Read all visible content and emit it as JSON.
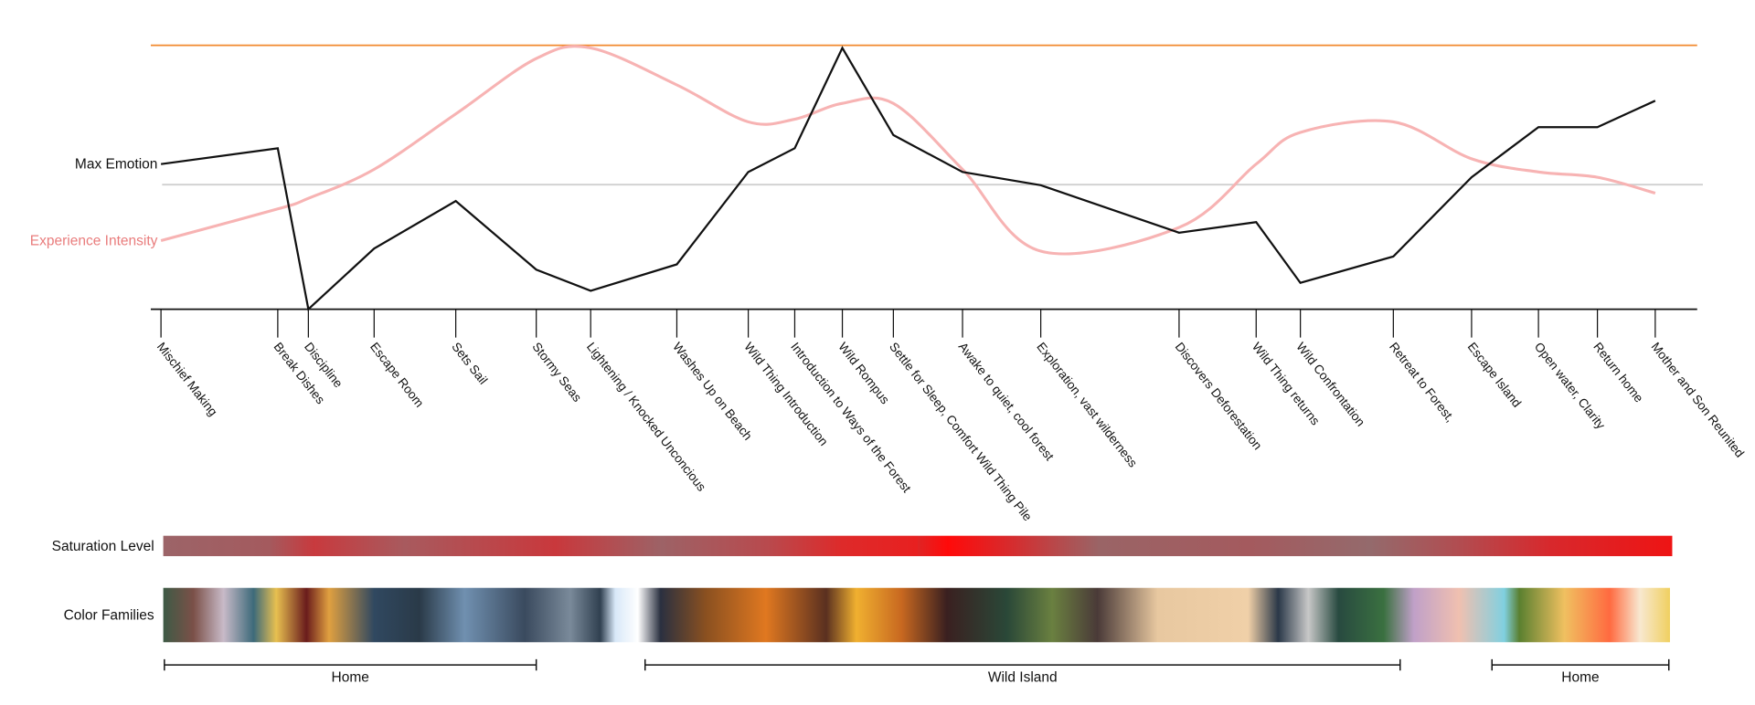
{
  "chart_data": {
    "type": "line",
    "categories": [
      "Mischief Making",
      "Break Dishes",
      "Discipline",
      "Escape Room",
      "Sets Sail",
      "Stormy Seas",
      "Lightening / Knocked Unconcious",
      "Washes Up on Beach",
      "Wild Thing Introduction",
      "Introduction to Ways of the Forest",
      "Wild Rompus",
      "Settle for Sleep, Comfort Wild Thing Pile",
      "Awake to quiet, cool forest",
      "Exploration, vast wilderness",
      "Discovers  Deforestation",
      "Wild Thing returns",
      "Wild Confrontation",
      "Retreat to Forest,",
      "Escape Island",
      "Open water, Clarity",
      "Return home",
      "Mother and Son Reunited"
    ],
    "series": [
      {
        "name": "Max Emotion",
        "color": "#111111",
        "smooth": false,
        "values": [
          55,
          61,
          0,
          23,
          41,
          15,
          7,
          17,
          52,
          61,
          99,
          66,
          52,
          47,
          29,
          33,
          10,
          20,
          50,
          69,
          69,
          79
        ]
      },
      {
        "name": "Experience Intensity",
        "color": "#f7b3b3",
        "label_color": "#e97c7c",
        "smooth": true,
        "values": [
          26,
          38,
          42,
          53,
          74,
          95,
          99,
          85,
          71,
          72,
          78,
          78,
          53,
          22,
          31,
          55,
          67,
          71,
          57,
          52,
          50,
          44
        ]
      }
    ],
    "ylim": [
      0,
      100
    ],
    "strips": [
      "Saturation Level",
      "Color Families"
    ],
    "sections": [
      "Home",
      "Wild Island",
      "Home"
    ]
  }
}
